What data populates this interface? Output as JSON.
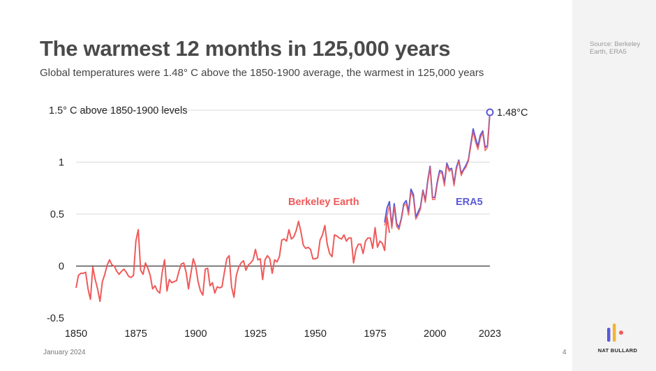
{
  "slide": {
    "title": "The warmest 12 months in 125,000 years",
    "subtitle": "Global temperatures were 1.48° C above the 1850-1900 average, the warmest in 125,000 years",
    "source": "Source: Berkeley Earth, ERA5",
    "date": "January 2024",
    "page": "4",
    "brand": "NAT BULLARD",
    "logo_colors": [
      "#5a5ad6",
      "#f2b632",
      "#ef5a5a"
    ]
  },
  "chart_data": {
    "type": "line",
    "title": "The warmest 12 months in 125,000 years",
    "subtitle": "Global temperatures were 1.48° C above the 1850-1900 average, the warmest in 125,000 years",
    "xlabel": "",
    "ylabel": "",
    "xlim": [
      1850,
      2023
    ],
    "ylim": [
      -0.5,
      1.5
    ],
    "x_ticks": [
      "1850",
      "1875",
      "1900",
      "1925",
      "1950",
      "1975",
      "2000",
      "2023"
    ],
    "y_ticks": [
      {
        "value": -0.5,
        "label": "-0.5"
      },
      {
        "value": 0,
        "label": "0"
      },
      {
        "value": 0.5,
        "label": "0.5"
      },
      {
        "value": 1,
        "label": "1"
      },
      {
        "value": 1.5,
        "label": "1.5° C above 1850-1900 levels"
      }
    ],
    "grid": true,
    "zero_line": true,
    "colors": {
      "berkeley": "#ef5a5a",
      "era5": "#5a5ad6",
      "grid": "#d9d9d9"
    },
    "series": [
      {
        "name": "Berkeley Earth",
        "x_start": 1850,
        "values": [
          -0.21,
          -0.09,
          -0.07,
          -0.07,
          -0.06,
          -0.22,
          -0.32,
          -0.01,
          -0.13,
          -0.22,
          -0.34,
          -0.15,
          -0.08,
          0.01,
          0.06,
          0.01,
          0.0,
          -0.05,
          -0.08,
          -0.05,
          -0.03,
          -0.06,
          -0.1,
          -0.11,
          -0.09,
          0.24,
          0.35,
          -0.04,
          -0.08,
          0.03,
          -0.02,
          -0.09,
          -0.22,
          -0.19,
          -0.24,
          -0.26,
          -0.06,
          0.06,
          -0.24,
          -0.13,
          -0.16,
          -0.15,
          -0.14,
          -0.05,
          0.02,
          0.03,
          -0.06,
          -0.22,
          -0.07,
          0.07,
          0.0,
          -0.15,
          -0.24,
          -0.28,
          -0.03,
          -0.02,
          -0.19,
          -0.16,
          -0.26,
          -0.2,
          -0.21,
          -0.2,
          -0.06,
          0.07,
          0.1,
          -0.2,
          -0.3,
          -0.09,
          -0.01,
          0.03,
          0.05,
          -0.04,
          0.01,
          0.03,
          0.06,
          0.16,
          0.06,
          0.07,
          -0.13,
          0.06,
          0.1,
          0.07,
          -0.07,
          0.06,
          0.04,
          0.09,
          0.25,
          0.26,
          0.24,
          0.35,
          0.26,
          0.28,
          0.34,
          0.43,
          0.33,
          0.2,
          0.17,
          0.18,
          0.16,
          0.07,
          0.07,
          0.08,
          0.25,
          0.3,
          0.39,
          0.21,
          0.12,
          0.09,
          0.3,
          0.29,
          0.27,
          0.26,
          0.3,
          0.24,
          0.27,
          0.27,
          0.03,
          0.16,
          0.21,
          0.21,
          0.12,
          0.24,
          0.27,
          0.27,
          0.17,
          0.37,
          0.18,
          0.24,
          0.22,
          0.15,
          0.47,
          0.32
        ],
        "label": "Berkeley Earth"
      },
      {
        "name": "ERA5",
        "x_start": 1979,
        "values": [
          0.42,
          0.56,
          0.62,
          0.38,
          0.6,
          0.41,
          0.37,
          0.46,
          0.6,
          0.63,
          0.52,
          0.74,
          0.69,
          0.47,
          0.52,
          0.57,
          0.73,
          0.63,
          0.82,
          0.96,
          0.66,
          0.66,
          0.81,
          0.92,
          0.91,
          0.8,
          0.99,
          0.93,
          0.94,
          0.79,
          0.95,
          1.02,
          0.89,
          0.93,
          0.97,
          1.02,
          1.17,
          1.32,
          1.23,
          1.15,
          1.26,
          1.3,
          1.14,
          1.16,
          1.48
        ],
        "label": "ERA5"
      },
      {
        "name": "Berkeley Earth (1979-2023)",
        "x_start": 1979,
        "values": [
          0.39,
          0.48,
          0.58,
          0.36,
          0.57,
          0.38,
          0.35,
          0.45,
          0.58,
          0.6,
          0.49,
          0.71,
          0.66,
          0.45,
          0.49,
          0.55,
          0.72,
          0.61,
          0.8,
          0.95,
          0.64,
          0.64,
          0.79,
          0.9,
          0.89,
          0.77,
          0.97,
          0.91,
          0.93,
          0.77,
          0.93,
          1.01,
          0.87,
          0.92,
          0.95,
          1.01,
          1.15,
          1.29,
          1.19,
          1.12,
          1.23,
          1.28,
          1.11,
          1.14,
          1.46
        ]
      }
    ],
    "annotations": [
      {
        "text": "1.48°C",
        "x": 2023,
        "y": 1.48
      },
      {
        "text": "Berkeley Earth",
        "series": "Berkeley Earth"
      },
      {
        "text": "ERA5",
        "series": "ERA5"
      }
    ]
  }
}
